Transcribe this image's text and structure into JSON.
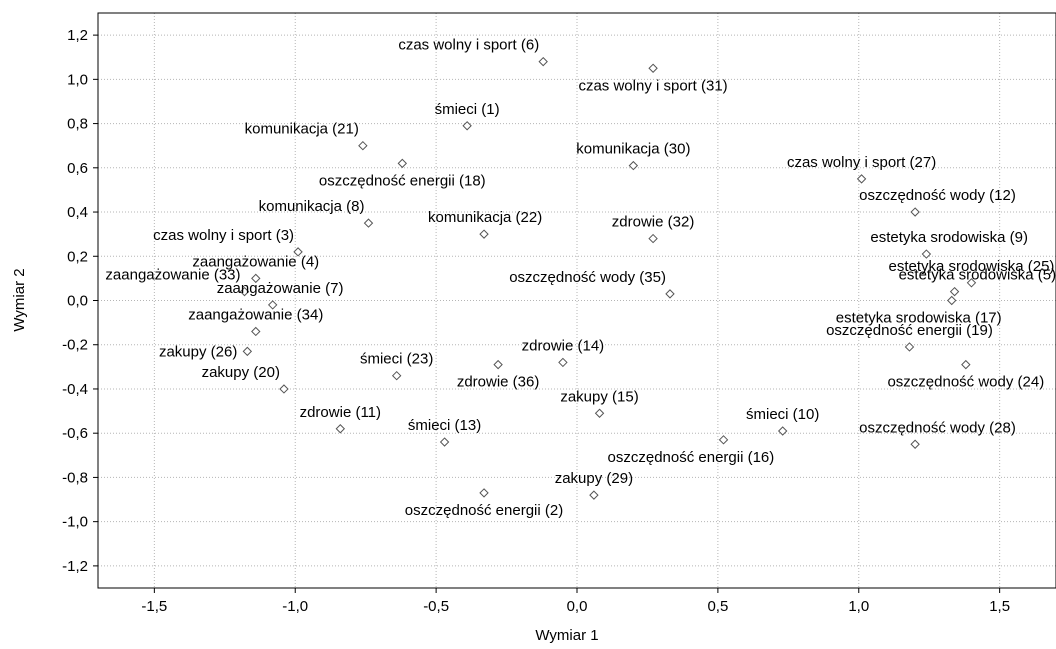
{
  "chart_data": {
    "type": "scatter",
    "xlabel": "Wymiar   1",
    "ylabel": "Wymiar   2",
    "xlim": [
      -1.7,
      1.7
    ],
    "ylim": [
      -1.3,
      1.3
    ],
    "grid": true,
    "x_ticks": [
      {
        "value": -1.5,
        "label": "-1,5"
      },
      {
        "value": -1.0,
        "label": "-1,0"
      },
      {
        "value": -0.5,
        "label": "-0,5"
      },
      {
        "value": 0.0,
        "label": "0,0"
      },
      {
        "value": 0.5,
        "label": "0,5"
      },
      {
        "value": 1.0,
        "label": "1,0"
      },
      {
        "value": 1.5,
        "label": "1,5"
      }
    ],
    "y_ticks": [
      {
        "value": 1.2,
        "label": "1,2"
      },
      {
        "value": 1.0,
        "label": "1,0"
      },
      {
        "value": 0.8,
        "label": "0,8"
      },
      {
        "value": 0.6,
        "label": "0,6"
      },
      {
        "value": 0.4,
        "label": "0,4"
      },
      {
        "value": 0.2,
        "label": "0,2"
      },
      {
        "value": 0.0,
        "label": "0,0"
      },
      {
        "value": -0.2,
        "label": "-0,2"
      },
      {
        "value": -0.4,
        "label": "-0,4"
      },
      {
        "value": -0.6,
        "label": "-0,6"
      },
      {
        "value": -0.8,
        "label": "-0,8"
      },
      {
        "value": -1.0,
        "label": "-1,0"
      },
      {
        "value": -1.2,
        "label": "-1,2"
      }
    ],
    "points": [
      {
        "label": "czas wolny i sport (6)",
        "x": -0.12,
        "y": 1.08,
        "anchor": "above-left"
      },
      {
        "label": "czas wolny i sport (31)",
        "x": 0.27,
        "y": 1.05,
        "anchor": "below"
      },
      {
        "label": "śmieci (1)",
        "x": -0.39,
        "y": 0.79,
        "anchor": "above"
      },
      {
        "label": "komunikacja (21)",
        "x": -0.76,
        "y": 0.7,
        "anchor": "above-left"
      },
      {
        "label": "oszczędność energii (18)",
        "x": -0.62,
        "y": 0.62,
        "anchor": "below"
      },
      {
        "label": "komunikacja (30)",
        "x": 0.2,
        "y": 0.61,
        "anchor": "above"
      },
      {
        "label": "czas wolny i sport (27)",
        "x": 1.01,
        "y": 0.55,
        "anchor": "above"
      },
      {
        "label": "oszczędność wody (12)",
        "x": 1.2,
        "y": 0.4,
        "anchor": "above-right"
      },
      {
        "label": "komunikacja (8)",
        "x": -0.74,
        "y": 0.35,
        "anchor": "above-left"
      },
      {
        "label": "komunikacja (22)",
        "x": -0.33,
        "y": 0.3,
        "anchor": "above-right"
      },
      {
        "label": "zdrowie (32)",
        "x": 0.27,
        "y": 0.28,
        "anchor": "above"
      },
      {
        "label": "czas wolny i sport (3)",
        "x": -0.99,
        "y": 0.22,
        "anchor": "above-left"
      },
      {
        "label": "estetyka srodowiska (9)",
        "x": 1.24,
        "y": 0.21,
        "anchor": "above-right"
      },
      {
        "label": "zaangażowanie (4)",
        "x": -1.14,
        "y": 0.1,
        "anchor": "above"
      },
      {
        "label": "estetyka srodowiska (25)",
        "x": 1.4,
        "y": 0.08,
        "anchor": "above"
      },
      {
        "label": "zaangażowanie (33)",
        "x": -1.18,
        "y": 0.04,
        "anchor": "above-left"
      },
      {
        "label": "oszczędność wody (35)",
        "x": 0.33,
        "y": 0.03,
        "anchor": "above-left"
      },
      {
        "label": "estetyka srodowiska (5)",
        "x": 1.34,
        "y": 0.04,
        "anchor": "above-right"
      },
      {
        "label": "zaangażowanie (7)",
        "x": -1.08,
        "y": -0.02,
        "anchor": "above-right"
      },
      {
        "label": "estetyka srodowiska (17)",
        "x": 1.33,
        "y": 0.0,
        "anchor": "below-right"
      },
      {
        "label": "zaangażowanie (34)",
        "x": -1.14,
        "y": -0.14,
        "anchor": "above"
      },
      {
        "label": "zakupy (26)",
        "x": -1.17,
        "y": -0.23,
        "anchor": "left"
      },
      {
        "label": "oszczędność energii (19)",
        "x": 1.18,
        "y": -0.21,
        "anchor": "above"
      },
      {
        "label": "zdrowie (14)",
        "x": -0.05,
        "y": -0.28,
        "anchor": "above"
      },
      {
        "label": "śmieci (23)",
        "x": -0.64,
        "y": -0.34,
        "anchor": "above"
      },
      {
        "label": "zdrowie (36)",
        "x": -0.28,
        "y": -0.29,
        "anchor": "below"
      },
      {
        "label": "oszczędność wody (24)",
        "x": 1.38,
        "y": -0.29,
        "anchor": "below"
      },
      {
        "label": "zakupy (20)",
        "x": -1.04,
        "y": -0.4,
        "anchor": "above-left"
      },
      {
        "label": "zakupy (15)",
        "x": 0.08,
        "y": -0.51,
        "anchor": "above"
      },
      {
        "label": "śmieci (10)",
        "x": 0.73,
        "y": -0.59,
        "anchor": "above"
      },
      {
        "label": "zdrowie (11)",
        "x": -0.84,
        "y": -0.58,
        "anchor": "above"
      },
      {
        "label": "śmieci (13)",
        "x": -0.47,
        "y": -0.64,
        "anchor": "above"
      },
      {
        "label": "oszczędność energii (16)",
        "x": 0.52,
        "y": -0.63,
        "anchor": "below-right"
      },
      {
        "label": "oszczędność wody (28)",
        "x": 1.2,
        "y": -0.65,
        "anchor": "above-right"
      },
      {
        "label": "zakupy (29)",
        "x": 0.06,
        "y": -0.88,
        "anchor": "above"
      },
      {
        "label": "oszczędność energii (2)",
        "x": -0.33,
        "y": -0.87,
        "anchor": "below"
      }
    ]
  }
}
